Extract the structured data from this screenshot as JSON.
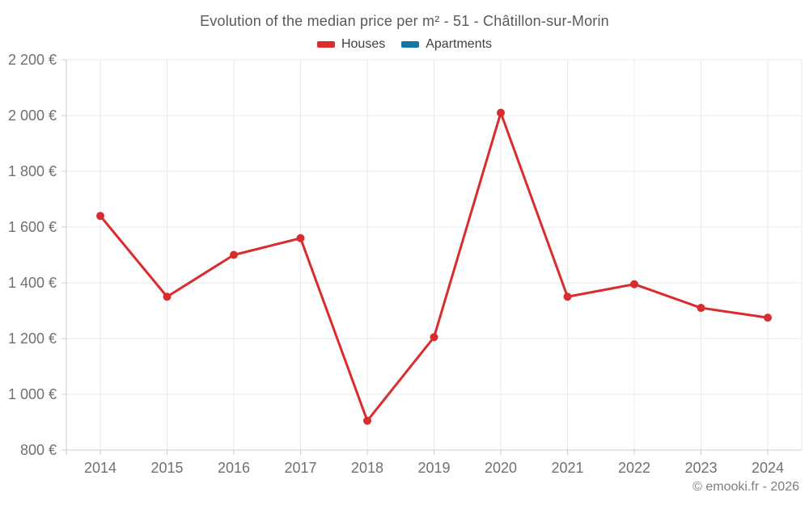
{
  "footer": {
    "copyright": "© emooki.fr - 2026"
  },
  "chart_data": {
    "type": "line",
    "title": "Evolution of the median price per m² - 51 - Châtillon-sur-Morin",
    "categories": [
      "2014",
      "2015",
      "2016",
      "2017",
      "2018",
      "2019",
      "2020",
      "2021",
      "2022",
      "2023",
      "2024"
    ],
    "series": [
      {
        "name": "Houses",
        "color": "#d82c2e",
        "values": [
          1640,
          1350,
          1500,
          1560,
          905,
          1205,
          2010,
          1350,
          1395,
          1310,
          1275
        ]
      },
      {
        "name": "Apartments",
        "color": "#1277a5",
        "values": []
      }
    ],
    "xlabel": "",
    "ylabel": "",
    "ylim": [
      800,
      2200
    ],
    "y_ticks": {
      "values": [
        800,
        1000,
        1200,
        1400,
        1600,
        1800,
        2000,
        2200
      ],
      "labels": [
        "800 €",
        "1 000 €",
        "1 200 €",
        "1 400 €",
        "1 600 €",
        "1 800 €",
        "2 000 €",
        "2 200 €"
      ]
    },
    "grid": true,
    "legend_position": "top",
    "style": {
      "grid_color": "#e9e9e9",
      "axis_color": "#cccccc",
      "tick_label_color": "#707070"
    }
  }
}
